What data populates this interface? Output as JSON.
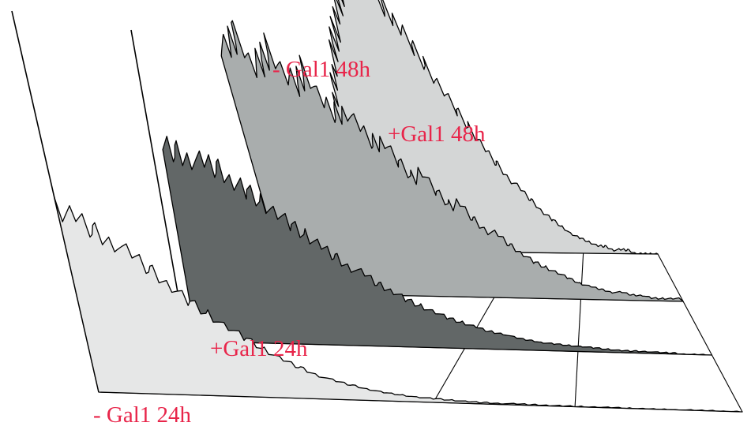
{
  "chart_data": {
    "type": "area",
    "projection": "3d-stacked-histogram",
    "grid": true,
    "label_color": "#e8254a",
    "series": [
      {
        "name": "- Gal1 48h",
        "fill": "#a9adad",
        "bin_counts": [
          0.98,
          0.92,
          1.0,
          0.88,
          0.9,
          0.95,
          0.84,
          0.8,
          0.86,
          0.74,
          0.7,
          0.72,
          0.64,
          0.58,
          0.6,
          0.52,
          0.46,
          0.48,
          0.4,
          0.35,
          0.36,
          0.3,
          0.26,
          0.24,
          0.2,
          0.17,
          0.14,
          0.12,
          0.1,
          0.08,
          0.06,
          0.05,
          0.04,
          0.03,
          0.03,
          0.02,
          0.02,
          0.01,
          0.01,
          0.01
        ]
      },
      {
        "name": "+Gal1 48h",
        "fill": "#d4d6d6",
        "bin_counts": [
          0.2,
          0.28,
          0.36,
          0.44,
          0.5,
          0.56,
          0.6,
          0.64,
          0.68,
          0.72,
          0.74,
          0.76,
          0.74,
          0.7,
          0.66,
          0.62,
          0.56,
          0.5,
          0.44,
          0.38,
          0.33,
          0.28,
          0.24,
          0.2,
          0.17,
          0.14,
          0.11,
          0.09,
          0.07,
          0.05,
          0.04,
          0.03,
          0.02,
          0.02,
          0.01,
          0.01,
          0.01,
          0.0,
          0.0,
          0.0
        ]
      },
      {
        "name": "+Gal1 24h",
        "fill": "#626767",
        "bin_counts": [
          1.0,
          0.97,
          0.94,
          0.9,
          0.88,
          0.82,
          0.78,
          0.72,
          0.66,
          0.6,
          0.55,
          0.5,
          0.45,
          0.4,
          0.36,
          0.31,
          0.28,
          0.24,
          0.21,
          0.18,
          0.15,
          0.13,
          0.11,
          0.09,
          0.08,
          0.06,
          0.05,
          0.04,
          0.035,
          0.03,
          0.025,
          0.02,
          0.015,
          0.01,
          0.01,
          0.01,
          0.005,
          0.005,
          0.0,
          0.0
        ]
      },
      {
        "name": "- Gal1 24h",
        "fill": "#e6e7e7",
        "bin_counts": [
          1.0,
          0.97,
          0.9,
          0.84,
          0.76,
          0.68,
          0.6,
          0.52,
          0.45,
          0.38,
          0.32,
          0.26,
          0.21,
          0.17,
          0.13,
          0.1,
          0.08,
          0.06,
          0.045,
          0.035,
          0.025,
          0.02,
          0.015,
          0.01,
          0.008,
          0.006,
          0.005,
          0.004,
          0.003,
          0.002,
          0.002,
          0.001,
          0.001,
          0.0,
          0.0,
          0.0,
          0.0,
          0.0,
          0.0,
          0.0
        ]
      }
    ]
  }
}
